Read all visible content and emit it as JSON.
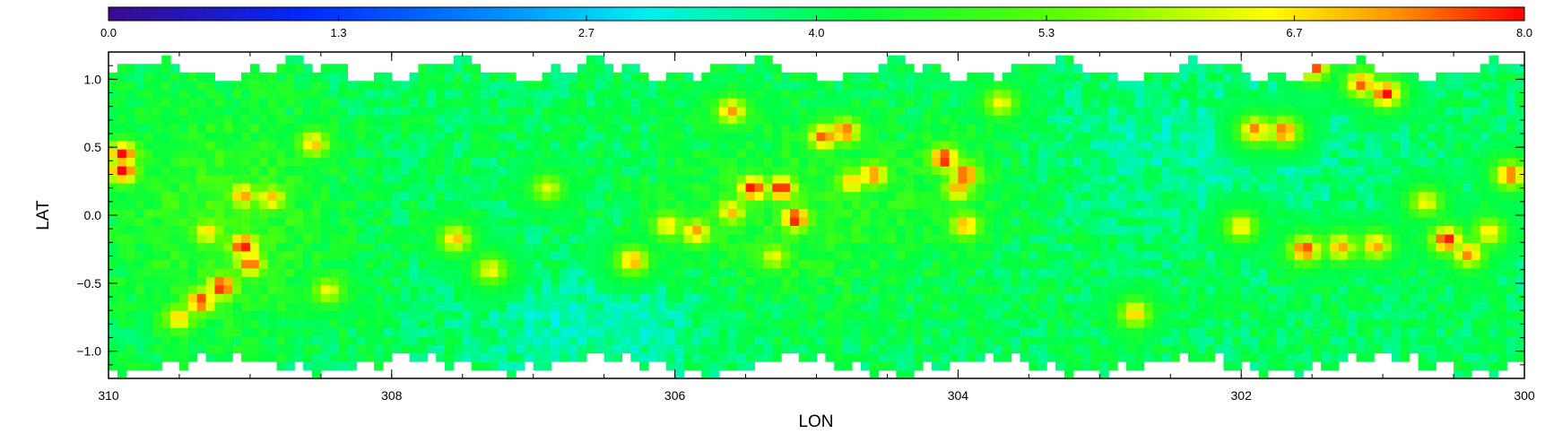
{
  "chart_data": {
    "type": "heatmap",
    "title": "",
    "xlabel": "LON",
    "ylabel": "LAT",
    "xlim": [
      310,
      300
    ],
    "ylim": [
      -1.2,
      1.2
    ],
    "x_ticks": [
      310,
      308,
      306,
      304,
      302,
      300
    ],
    "x_tick_labels": [
      "310",
      "308",
      "306",
      "304",
      "302",
      "300"
    ],
    "y_ticks": [
      1.0,
      0.5,
      0.0,
      -0.5,
      -1.0
    ],
    "y_tick_labels": [
      "1.0",
      "0.5",
      "0.0",
      "−0.5",
      "−1.0"
    ],
    "grid": false,
    "colorbar": {
      "placement": "top",
      "range": [
        0.0,
        8.0
      ],
      "ticks": [
        0.0,
        1.3,
        2.7,
        4.0,
        5.3,
        6.7,
        8.0
      ],
      "tick_labels": [
        "0.0",
        "1.3",
        "2.7",
        "4.0",
        "5.3",
        "6.7",
        "8.0"
      ],
      "colormap": "rainbow"
    },
    "background_level": 4.0,
    "cell_size_deg": 0.0625,
    "hotspots": [
      {
        "lon": 309.9,
        "lat": 0.45,
        "value": 8.0
      },
      {
        "lon": 309.9,
        "lat": 0.33,
        "value": 8.0
      },
      {
        "lon": 309.05,
        "lat": -0.22,
        "value": 8.0
      },
      {
        "lon": 309.0,
        "lat": -0.35,
        "value": 7.6
      },
      {
        "lon": 309.2,
        "lat": -0.52,
        "value": 8.0
      },
      {
        "lon": 309.35,
        "lat": -0.63,
        "value": 7.8
      },
      {
        "lon": 309.05,
        "lat": 0.15,
        "value": 7.2
      },
      {
        "lon": 308.85,
        "lat": 0.13,
        "value": 7.0
      },
      {
        "lon": 309.3,
        "lat": -0.12,
        "value": 6.8
      },
      {
        "lon": 308.55,
        "lat": 0.53,
        "value": 7.0
      },
      {
        "lon": 309.5,
        "lat": -0.75,
        "value": 7.0
      },
      {
        "lon": 307.3,
        "lat": -0.4,
        "value": 6.6
      },
      {
        "lon": 307.55,
        "lat": -0.17,
        "value": 7.0
      },
      {
        "lon": 305.45,
        "lat": 0.2,
        "value": 8.0
      },
      {
        "lon": 305.25,
        "lat": 0.2,
        "value": 8.0
      },
      {
        "lon": 305.15,
        "lat": -0.02,
        "value": 8.0
      },
      {
        "lon": 305.6,
        "lat": 0.03,
        "value": 7.0
      },
      {
        "lon": 305.85,
        "lat": -0.12,
        "value": 7.2
      },
      {
        "lon": 305.6,
        "lat": 0.77,
        "value": 7.2
      },
      {
        "lon": 304.95,
        "lat": 0.58,
        "value": 7.6
      },
      {
        "lon": 304.8,
        "lat": 0.62,
        "value": 7.6
      },
      {
        "lon": 304.6,
        "lat": 0.3,
        "value": 7.4
      },
      {
        "lon": 304.75,
        "lat": 0.25,
        "value": 7.0
      },
      {
        "lon": 304.1,
        "lat": 0.42,
        "value": 8.0
      },
      {
        "lon": 303.95,
        "lat": 0.3,
        "value": 7.8
      },
      {
        "lon": 304.0,
        "lat": 0.2,
        "value": 7.2
      },
      {
        "lon": 303.95,
        "lat": -0.07,
        "value": 7.2
      },
      {
        "lon": 305.3,
        "lat": -0.3,
        "value": 6.5
      },
      {
        "lon": 306.3,
        "lat": -0.33,
        "value": 7.2
      },
      {
        "lon": 301.7,
        "lat": 0.62,
        "value": 7.6
      },
      {
        "lon": 301.9,
        "lat": 0.63,
        "value": 7.4
      },
      {
        "lon": 301.5,
        "lat": 1.1,
        "value": 8.0
      },
      {
        "lon": 300.98,
        "lat": 0.9,
        "value": 8.0
      },
      {
        "lon": 301.15,
        "lat": 0.97,
        "value": 7.6
      },
      {
        "lon": 301.55,
        "lat": -0.25,
        "value": 7.8
      },
      {
        "lon": 301.3,
        "lat": -0.23,
        "value": 7.2
      },
      {
        "lon": 301.05,
        "lat": -0.22,
        "value": 7.2
      },
      {
        "lon": 300.55,
        "lat": -0.18,
        "value": 8.0
      },
      {
        "lon": 300.4,
        "lat": -0.28,
        "value": 7.4
      },
      {
        "lon": 300.1,
        "lat": 0.3,
        "value": 7.6
      },
      {
        "lon": 300.25,
        "lat": -0.12,
        "value": 6.8
      },
      {
        "lon": 302.75,
        "lat": -0.72,
        "value": 7.0
      },
      {
        "lon": 303.7,
        "lat": 0.83,
        "value": 6.6
      },
      {
        "lon": 306.05,
        "lat": -0.07,
        "value": 6.8
      },
      {
        "lon": 308.45,
        "lat": -0.55,
        "value": 6.5
      },
      {
        "lon": 306.9,
        "lat": 0.2,
        "value": 6.4
      },
      {
        "lon": 302.0,
        "lat": -0.08,
        "value": 6.8
      },
      {
        "lon": 300.7,
        "lat": 0.1,
        "value": 6.6
      }
    ]
  }
}
